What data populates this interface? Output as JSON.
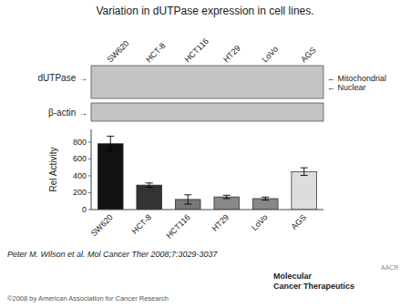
{
  "chart_data": {
    "type": "bar",
    "title": "Variation in dUTPase expression in cell lines.",
    "categories": [
      "SW620",
      "HCT-8",
      "HCT116",
      "HT29",
      "LoVo",
      "AGS"
    ],
    "values": [
      780,
      290,
      120,
      150,
      130,
      450
    ],
    "errors": [
      90,
      25,
      55,
      20,
      18,
      45
    ],
    "colors": [
      "#111111",
      "#333333",
      "#777777",
      "#888888",
      "#888888",
      "#dddddd"
    ],
    "ylabel": "Rel Activity",
    "ylim": [
      0,
      950
    ],
    "yticks": [
      0,
      200,
      400,
      600,
      800
    ],
    "grid": false,
    "annotations": [
      "dUTPase →",
      "β-actin →",
      "← Mitochondrial",
      "← Nuclear",
      "Peter M. Wilson et al. Mol Cancer Ther 2008;7:3029-3037",
      "©2008 by American Association for Cancer Research",
      "Molecular\nCancer Therapeutics",
      "AACR"
    ]
  }
}
